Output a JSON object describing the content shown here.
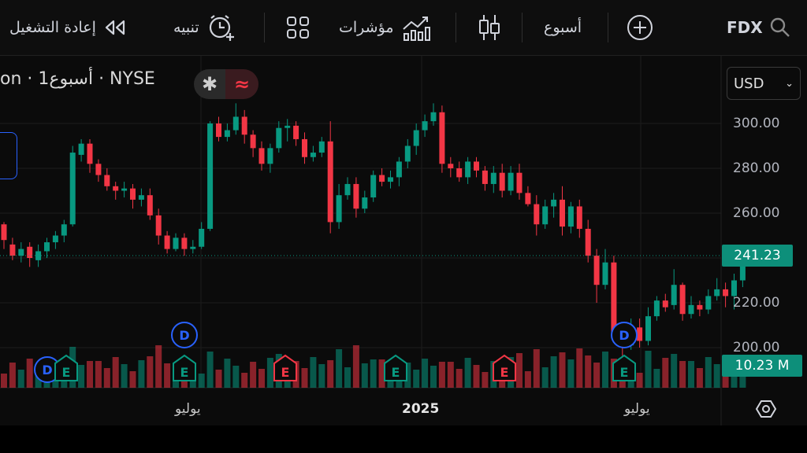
{
  "toolbar": {
    "replay_label": "إعادة التشغيل",
    "alert_label": "تنبيه",
    "indicators_label": "مؤشرات",
    "interval_label": "أسبوع",
    "ticker": "FDX",
    "icons": [
      "replay-icon",
      "alert-clock-icon",
      "layout-grid-icon",
      "indicators-icon",
      "candles-icon",
      "add-icon",
      "search-icon"
    ]
  },
  "legend": {
    "symbol_line": "on · أسبوع1 · NYSE"
  },
  "currency": {
    "value": "USD"
  },
  "price_axis": {
    "labels": [
      "300.00",
      "280.00",
      "260.00",
      "220.00",
      "200.00"
    ]
  },
  "last_price": "241.23",
  "last_volume": "10.23 M",
  "time_axis": {
    "labels": [
      "يوليو",
      "2025",
      "يوليو"
    ]
  },
  "events": {
    "dividend": "D",
    "earnings": "E"
  },
  "colors": {
    "up": "#089981",
    "down": "#f23645",
    "accent": "#2962ff",
    "tag": "#0d8f7a"
  },
  "chart_data": {
    "type": "candlestick",
    "interval": "1 week",
    "ylim": [
      190,
      318
    ],
    "candles": [
      [
        255,
        248,
        256,
        244
      ],
      [
        246,
        241,
        249,
        239
      ],
      [
        241,
        244,
        247,
        238
      ],
      [
        245,
        240,
        247,
        236
      ],
      [
        239,
        243,
        246,
        236
      ],
      [
        243,
        247,
        249,
        240
      ],
      [
        247,
        250,
        252,
        244
      ],
      [
        250,
        255,
        257,
        247
      ],
      [
        255,
        287,
        290,
        254
      ],
      [
        286,
        291,
        293,
        283
      ],
      [
        291,
        282,
        293,
        278
      ],
      [
        282,
        277,
        284,
        274
      ],
      [
        277,
        272,
        280,
        270
      ],
      [
        272,
        270,
        274,
        266
      ],
      [
        270,
        271,
        274,
        267
      ],
      [
        271,
        266,
        273,
        262
      ],
      [
        266,
        268,
        271,
        263
      ],
      [
        268,
        259,
        271,
        257
      ],
      [
        259,
        250,
        262,
        246
      ],
      [
        250,
        244,
        252,
        242
      ],
      [
        244,
        249,
        251,
        243
      ],
      [
        249,
        244,
        251,
        241
      ],
      [
        244,
        245,
        248,
        242
      ],
      [
        245,
        253,
        256,
        244
      ],
      [
        253,
        300,
        301,
        252
      ],
      [
        300,
        294,
        303,
        292
      ],
      [
        294,
        297,
        300,
        292
      ],
      [
        297,
        303,
        309,
        295
      ],
      [
        303,
        295,
        306,
        291
      ],
      [
        295,
        289,
        297,
        285
      ],
      [
        289,
        282,
        292,
        279
      ],
      [
        282,
        289,
        291,
        278
      ],
      [
        289,
        298,
        301,
        287
      ],
      [
        298,
        299,
        302,
        292
      ],
      [
        299,
        293,
        301,
        290
      ],
      [
        293,
        285,
        296,
        282
      ],
      [
        285,
        287,
        290,
        283
      ],
      [
        287,
        292,
        294,
        285
      ],
      [
        292,
        256,
        301,
        251
      ],
      [
        256,
        268,
        273,
        253
      ],
      [
        268,
        273,
        276,
        266
      ],
      [
        273,
        262,
        276,
        258
      ],
      [
        262,
        267,
        270,
        260
      ],
      [
        267,
        277,
        279,
        265
      ],
      [
        277,
        274,
        280,
        272
      ],
      [
        274,
        276,
        279,
        271
      ],
      [
        276,
        283,
        285,
        272
      ],
      [
        283,
        290,
        293,
        280
      ],
      [
        290,
        297,
        300,
        286
      ],
      [
        297,
        301,
        304,
        294
      ],
      [
        301,
        305,
        309,
        299
      ],
      [
        305,
        282,
        308,
        278
      ],
      [
        282,
        280,
        285,
        276
      ],
      [
        280,
        276,
        283,
        274
      ],
      [
        276,
        283,
        285,
        273
      ],
      [
        283,
        279,
        285,
        276
      ],
      [
        279,
        273,
        281,
        270
      ],
      [
        273,
        278,
        281,
        269
      ],
      [
        278,
        270,
        282,
        267
      ],
      [
        270,
        278,
        281,
        268
      ],
      [
        278,
        269,
        282,
        266
      ],
      [
        269,
        264,
        272,
        263
      ],
      [
        264,
        255,
        268,
        250
      ],
      [
        255,
        263,
        266,
        253
      ],
      [
        263,
        266,
        269,
        258
      ],
      [
        266,
        254,
        272,
        250
      ],
      [
        254,
        263,
        265,
        251
      ],
      [
        263,
        253,
        266,
        249
      ],
      [
        253,
        241,
        257,
        238
      ],
      [
        241,
        228,
        244,
        220
      ],
      [
        228,
        238,
        244,
        226
      ],
      [
        238,
        207,
        241,
        203
      ],
      [
        207,
        201,
        210,
        195
      ],
      [
        201,
        209,
        213,
        199
      ],
      [
        209,
        203,
        213,
        200
      ],
      [
        203,
        214,
        218,
        201
      ],
      [
        214,
        221,
        223,
        212
      ],
      [
        221,
        218,
        224,
        216
      ],
      [
        219,
        228,
        235,
        217
      ],
      [
        228,
        215,
        229,
        212
      ],
      [
        215,
        219,
        223,
        213
      ],
      [
        219,
        217,
        221,
        214
      ],
      [
        217,
        223,
        226,
        215
      ],
      [
        223,
        226,
        231,
        221
      ],
      [
        226,
        223,
        229,
        218
      ],
      [
        223,
        230,
        233,
        217
      ],
      [
        230,
        241,
        245,
        227
      ]
    ],
    "volume_colors": "up/down per candle",
    "last": 241.23,
    "last_volume": "10.23 M"
  }
}
